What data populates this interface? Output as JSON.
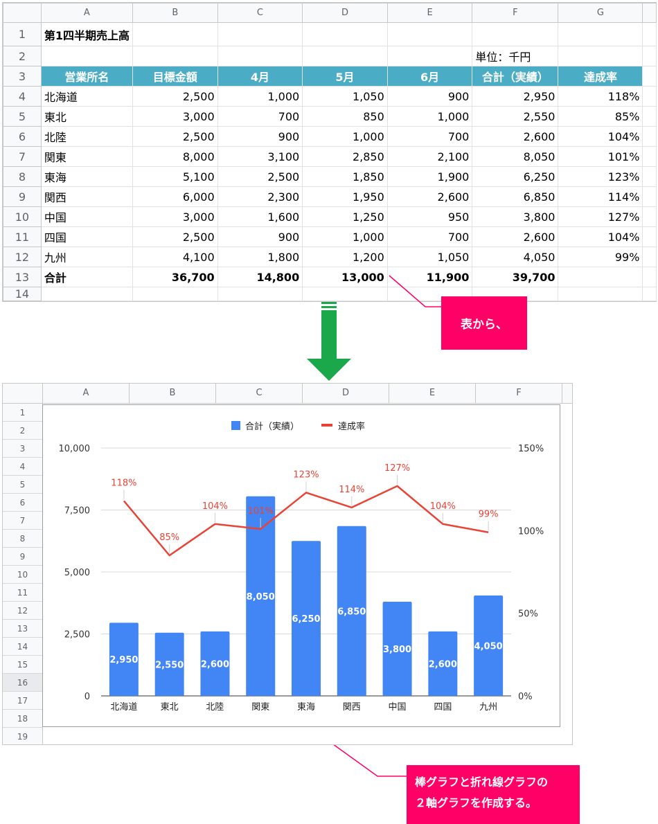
{
  "top_sheet": {
    "columns": [
      "A",
      "B",
      "C",
      "D",
      "E",
      "F",
      "G"
    ],
    "rows": [
      "1",
      "2",
      "3",
      "4",
      "5",
      "6",
      "7",
      "8",
      "9",
      "10",
      "11",
      "12",
      "13",
      "14"
    ],
    "title": "第1四半期売上高",
    "unit": "単位：千円",
    "headers": [
      "営業所名",
      "目標金額",
      "4月",
      "5月",
      "6月",
      "合計（実績）",
      "達成率"
    ],
    "data": [
      [
        "北海道",
        "2,500",
        "1,000",
        "1,050",
        "900",
        "2,950",
        "118%"
      ],
      [
        "東北",
        "3,000",
        "700",
        "850",
        "1,000",
        "2,550",
        "85%"
      ],
      [
        "北陸",
        "2,500",
        "900",
        "1,000",
        "700",
        "2,600",
        "104%"
      ],
      [
        "関東",
        "8,000",
        "3,100",
        "2,850",
        "2,100",
        "8,050",
        "101%"
      ],
      [
        "東海",
        "5,100",
        "2,500",
        "1,850",
        "1,900",
        "6,250",
        "123%"
      ],
      [
        "関西",
        "6,000",
        "2,300",
        "1,950",
        "2,600",
        "6,850",
        "114%"
      ],
      [
        "中国",
        "3,000",
        "1,600",
        "1,250",
        "950",
        "3,800",
        "127%"
      ],
      [
        "四国",
        "2,500",
        "900",
        "1,000",
        "700",
        "2,600",
        "104%"
      ],
      [
        "九州",
        "4,100",
        "1,800",
        "1,200",
        "1,050",
        "4,050",
        "99%"
      ]
    ],
    "total": [
      "合計",
      "36,700",
      "14,800",
      "13,000",
      "11,900",
      "39,700",
      ""
    ]
  },
  "callout1": "表から、",
  "callout2_line1": "棒グラフと折れ線グラフの",
  "callout2_line2": "２軸グラフを作成する。",
  "bottom_sheet": {
    "columns": [
      "A",
      "B",
      "C",
      "D",
      "E",
      "F"
    ],
    "rows": [
      "1",
      "2",
      "3",
      "4",
      "5",
      "6",
      "7",
      "8",
      "9",
      "10",
      "11",
      "12",
      "13",
      "14",
      "15",
      "16",
      "17",
      "18",
      "19"
    ],
    "selected_row": "16"
  },
  "colors": {
    "bar": "#4285f4",
    "line": "#ea4335",
    "header_fill": "#4bacc6",
    "callout": "#ff0066",
    "arrow": "#1aa84b"
  },
  "chart_data": {
    "type": "bar",
    "categories": [
      "北海道",
      "東北",
      "北陸",
      "関東",
      "東海",
      "関西",
      "中国",
      "四国",
      "九州"
    ],
    "series": [
      {
        "name": "合計（実績）",
        "type": "bar",
        "axis": "left",
        "values": [
          2950,
          2550,
          2600,
          8050,
          6250,
          6850,
          3800,
          2600,
          4050
        ],
        "labels": [
          "2,950",
          "2,550",
          "2,600",
          "8,050",
          "6,250",
          "6,850",
          "3,800",
          "2,600",
          "4,050"
        ]
      },
      {
        "name": "達成率",
        "type": "line",
        "axis": "right",
        "values": [
          118,
          85,
          104,
          101,
          123,
          114,
          127,
          104,
          99
        ],
        "labels": [
          "118%",
          "85%",
          "104%",
          "101%",
          "123%",
          "114%",
          "127%",
          "104%",
          "99%"
        ]
      }
    ],
    "y_left": {
      "range": [
        0,
        10000
      ],
      "ticks": [
        "0",
        "2,500",
        "5,000",
        "7,500",
        "10,000"
      ]
    },
    "y_right": {
      "range": [
        0,
        150
      ],
      "ticks": [
        "0%",
        "50%",
        "100%",
        "150%"
      ]
    },
    "legend": "top",
    "grid": true
  }
}
